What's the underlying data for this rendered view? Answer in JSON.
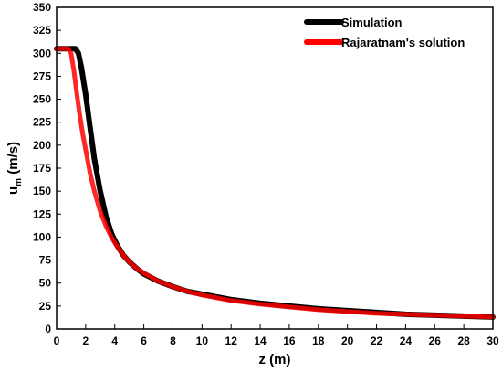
{
  "chart_data": {
    "type": "line",
    "xlabel": "z (m)",
    "ylabel_main": "u",
    "ylabel_sub": "m",
    "ylabel_unit": " (m/s)",
    "xlim": [
      0,
      30
    ],
    "ylim": [
      0,
      350
    ],
    "xticks": [
      0,
      2,
      4,
      6,
      8,
      10,
      12,
      14,
      16,
      18,
      20,
      22,
      24,
      26,
      28,
      30
    ],
    "yticks": [
      0,
      25,
      50,
      75,
      100,
      125,
      150,
      175,
      200,
      225,
      250,
      275,
      300,
      325,
      350
    ],
    "grid": false,
    "legend_position": "top-right",
    "series": [
      {
        "name": "Simulation",
        "color": "#000000",
        "x": [
          0,
          0.5,
          1.0,
          1.3,
          1.5,
          1.7,
          2.0,
          2.3,
          2.6,
          3.0,
          3.4,
          3.8,
          4.2,
          4.6,
          5.0,
          5.5,
          6.0,
          7.0,
          8.0,
          9.0,
          10.0,
          12.0,
          14.0,
          16.0,
          18.0,
          20.0,
          22.0,
          24.0,
          26.0,
          28.0,
          30.0
        ],
        "y": [
          305,
          305,
          305,
          305,
          300,
          285,
          255,
          220,
          185,
          150,
          122,
          103,
          90,
          80,
          73,
          66,
          60,
          52,
          46,
          41,
          38,
          32,
          28,
          25,
          22,
          20,
          18,
          16,
          15,
          14,
          13
        ]
      },
      {
        "name": "Rajaratnam's solution",
        "color": "#ff0000",
        "x": [
          0,
          0.5,
          0.8,
          1.0,
          1.2,
          1.4,
          1.6,
          1.8,
          2.0,
          2.3,
          2.6,
          3.0,
          3.4,
          3.8,
          4.2,
          4.6,
          5.0,
          5.5,
          6.0,
          7.0,
          8.0,
          9.0,
          10.0,
          12.0,
          14.0,
          16.0,
          18.0,
          20.0,
          22.0,
          24.0,
          26.0,
          28.0,
          30.0
        ],
        "y": [
          305,
          305,
          305,
          300,
          280,
          255,
          232,
          212,
          195,
          170,
          150,
          128,
          112,
          99,
          89,
          80,
          73,
          66,
          61,
          52,
          46,
          41,
          37,
          31,
          27,
          24,
          21,
          19,
          17,
          16,
          15,
          14,
          13
        ]
      }
    ]
  }
}
